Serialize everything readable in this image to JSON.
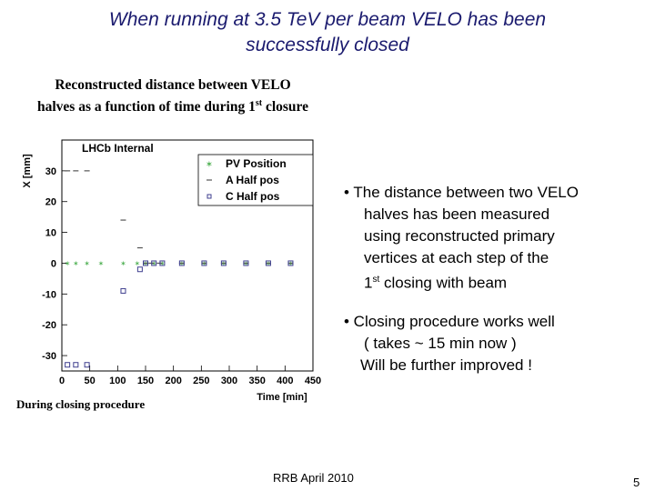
{
  "slide": {
    "title_line1": "When running at 3.5 TeV per beam VELO has been",
    "title_line2": "successfully closed",
    "subtitle_line1": "Reconstructed distance between VELO",
    "subtitle_line2_pre": "halves as a function of time during 1",
    "subtitle_line2_sup": "st",
    "subtitle_line2_post": " closure",
    "bullet1": {
      "line1": "• The distance between two VELO",
      "line2": "halves has been measured",
      "line3": "using reconstructed primary",
      "line4": "vertices at each step of the",
      "line5_pre": "1",
      "line5_sup": "st",
      "line5_post": " closing with beam"
    },
    "bullet2": {
      "line1": "• Closing procedure works well",
      "line2": "( takes ~ 15 min now )",
      "line3": "Will be further improved !"
    },
    "during_label": "During closing procedure",
    "footer": "RRB April 2010",
    "page_number": "5"
  },
  "chart_data": {
    "type": "scatter",
    "title": "LHCb Internal",
    "xlabel": "Time [min]",
    "ylabel": "X [mm]",
    "xlim": [
      0,
      450
    ],
    "ylim": [
      -35,
      40
    ],
    "x_ticks": [
      0,
      50,
      100,
      150,
      200,
      250,
      300,
      350,
      400,
      450
    ],
    "y_ticks": [
      -30,
      -20,
      -10,
      0,
      10,
      20,
      30
    ],
    "grid": false,
    "legend_position": "top-right",
    "series": [
      {
        "name": "PV Position",
        "marker": "star",
        "color": "#4caf50",
        "points": [
          [
            10,
            0
          ],
          [
            25,
            0
          ],
          [
            45,
            0
          ],
          [
            70,
            0
          ],
          [
            110,
            0
          ],
          [
            135,
            0
          ],
          [
            150,
            0
          ],
          [
            165,
            0
          ],
          [
            180,
            0
          ],
          [
            215,
            0
          ],
          [
            255,
            0
          ],
          [
            290,
            0
          ],
          [
            330,
            0
          ],
          [
            370,
            0
          ],
          [
            410,
            0
          ]
        ]
      },
      {
        "name": "A Half pos",
        "marker": "dash",
        "color": "#555555",
        "points": [
          [
            10,
            30
          ],
          [
            25,
            30
          ],
          [
            45,
            30
          ],
          [
            110,
            14
          ],
          [
            140,
            5
          ],
          [
            150,
            0
          ],
          [
            160,
            0
          ],
          [
            175,
            0
          ],
          [
            215,
            0
          ],
          [
            255,
            0
          ],
          [
            290,
            0
          ],
          [
            330,
            0
          ],
          [
            370,
            0
          ],
          [
            410,
            0
          ]
        ]
      },
      {
        "name": "C Half pos",
        "marker": "open-square",
        "color": "#3f3f8f",
        "points": [
          [
            10,
            -33
          ],
          [
            25,
            -33
          ],
          [
            45,
            -33
          ],
          [
            110,
            -9
          ],
          [
            140,
            -2
          ],
          [
            150,
            0
          ],
          [
            165,
            0
          ],
          [
            180,
            0
          ],
          [
            215,
            0
          ],
          [
            255,
            0
          ],
          [
            290,
            0
          ],
          [
            330,
            0
          ],
          [
            370,
            0
          ],
          [
            410,
            0
          ]
        ]
      }
    ]
  }
}
